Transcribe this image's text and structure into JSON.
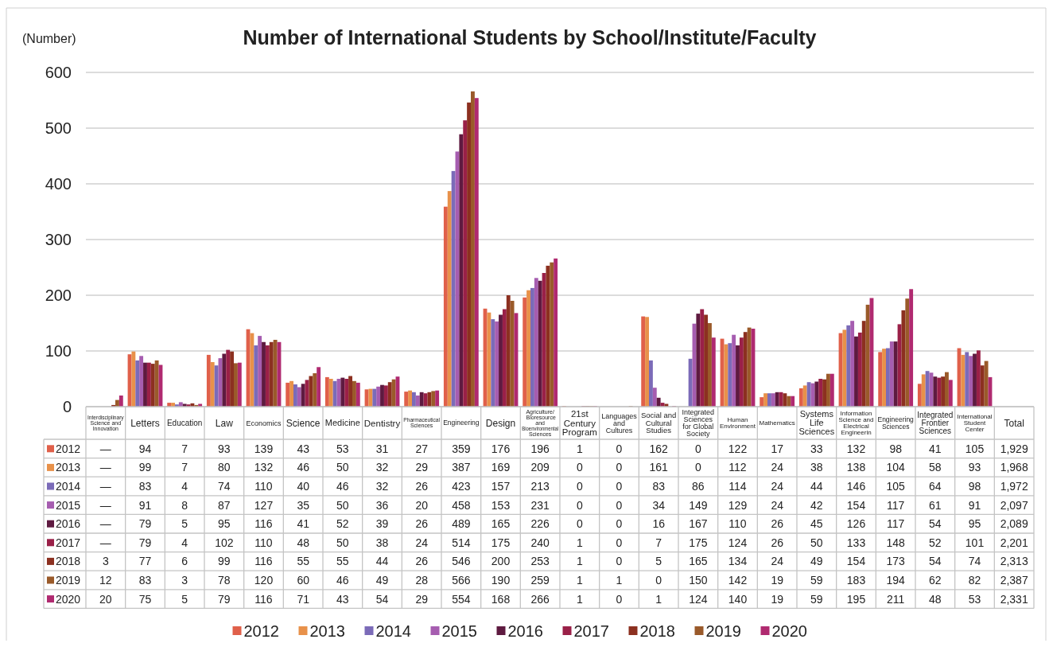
{
  "chart_data": {
    "type": "bar",
    "title": "Number of International Students by School/Institute/Faculty",
    "ylabel": "(Number)",
    "categories": [
      "Interdisciplinary Science and Innovation",
      "Letters",
      "Education",
      "Law",
      "Economics",
      "Science",
      "Medicine",
      "Dentistry",
      "Pharmaceutical Sciences",
      "Engineering",
      "Design",
      "Agriculture/ Bioresource and Bioenvironmental Sciences",
      "21st Century Program",
      "Languages and Cultures",
      "Social and Cultural Studies",
      "Integrated Sciences for Global Society",
      "Human Environment",
      "Mathematics",
      "Systems Life Sciences",
      "Information Science and Electrical Engineerin",
      "Engineering Sciences",
      "Integrated Frontier Sciences",
      "International Student Center",
      "Total"
    ],
    "ylim": [
      0,
      600
    ],
    "yticks": [
      0,
      100,
      200,
      300,
      400,
      500,
      600
    ],
    "grid": "y",
    "legend": "bottom",
    "series": [
      {
        "name": "2012",
        "color": "#e0604a",
        "values": [
          null,
          94,
          7,
          93,
          139,
          43,
          53,
          31,
          27,
          359,
          176,
          196,
          1,
          0,
          162,
          0,
          122,
          17,
          33,
          132,
          98,
          41,
          105,
          null
        ],
        "value_labels": [
          "—",
          "94",
          "7",
          "93",
          "139",
          "43",
          "53",
          "31",
          "27",
          "359",
          "176",
          "196",
          "1",
          "0",
          "162",
          "0",
          "122",
          "17",
          "33",
          "132",
          "98",
          "41",
          "105",
          "1,929"
        ]
      },
      {
        "name": "2013",
        "color": "#e8914a",
        "values": [
          null,
          99,
          7,
          80,
          132,
          46,
          50,
          32,
          29,
          387,
          169,
          209,
          0,
          0,
          161,
          0,
          112,
          24,
          38,
          138,
          104,
          58,
          93,
          null
        ],
        "value_labels": [
          "—",
          "99",
          "7",
          "80",
          "132",
          "46",
          "50",
          "32",
          "29",
          "387",
          "169",
          "209",
          "0",
          "0",
          "161",
          "0",
          "112",
          "24",
          "38",
          "138",
          "104",
          "58",
          "93",
          "1,968"
        ]
      },
      {
        "name": "2014",
        "color": "#7b6bb8",
        "values": [
          null,
          83,
          4,
          74,
          110,
          40,
          46,
          32,
          26,
          423,
          157,
          213,
          0,
          0,
          83,
          86,
          114,
          24,
          44,
          146,
          105,
          64,
          98,
          null
        ],
        "value_labels": [
          "—",
          "83",
          "4",
          "74",
          "110",
          "40",
          "46",
          "32",
          "26",
          "423",
          "157",
          "213",
          "0",
          "0",
          "83",
          "86",
          "114",
          "24",
          "44",
          "146",
          "105",
          "64",
          "98",
          "1,972"
        ]
      },
      {
        "name": "2015",
        "color": "#a65db0",
        "values": [
          null,
          91,
          8,
          87,
          127,
          35,
          50,
          36,
          20,
          458,
          153,
          231,
          0,
          0,
          34,
          149,
          129,
          24,
          42,
          154,
          117,
          61,
          91,
          null
        ],
        "value_labels": [
          "—",
          "91",
          "8",
          "87",
          "127",
          "35",
          "50",
          "36",
          "20",
          "458",
          "153",
          "231",
          "0",
          "0",
          "34",
          "149",
          "129",
          "24",
          "42",
          "154",
          "117",
          "61",
          "91",
          "2,097"
        ]
      },
      {
        "name": "2016",
        "color": "#5e1a40",
        "values": [
          null,
          79,
          5,
          95,
          116,
          41,
          52,
          39,
          26,
          489,
          165,
          226,
          0,
          0,
          16,
          167,
          110,
          26,
          45,
          126,
          117,
          54,
          95,
          null
        ],
        "value_labels": [
          "—",
          "79",
          "5",
          "95",
          "116",
          "41",
          "52",
          "39",
          "26",
          "489",
          "165",
          "226",
          "0",
          "0",
          "16",
          "167",
          "110",
          "26",
          "45",
          "126",
          "117",
          "54",
          "95",
          "2,089"
        ]
      },
      {
        "name": "2017",
        "color": "#9a2048",
        "values": [
          null,
          79,
          4,
          102,
          110,
          48,
          50,
          38,
          24,
          514,
          175,
          240,
          1,
          0,
          7,
          175,
          124,
          26,
          50,
          133,
          148,
          52,
          101,
          null
        ],
        "value_labels": [
          "—",
          "79",
          "4",
          "102",
          "110",
          "48",
          "50",
          "38",
          "24",
          "514",
          "175",
          "240",
          "1",
          "0",
          "7",
          "175",
          "124",
          "26",
          "50",
          "133",
          "148",
          "52",
          "101",
          "2,201"
        ]
      },
      {
        "name": "2018",
        "color": "#8c3020",
        "values": [
          3,
          77,
          6,
          99,
          116,
          55,
          55,
          44,
          26,
          546,
          200,
          253,
          1,
          0,
          5,
          165,
          134,
          24,
          49,
          154,
          173,
          54,
          74,
          null
        ],
        "value_labels": [
          "3",
          "77",
          "6",
          "99",
          "116",
          "55",
          "55",
          "44",
          "26",
          "546",
          "200",
          "253",
          "1",
          "0",
          "5",
          "165",
          "134",
          "24",
          "49",
          "154",
          "173",
          "54",
          "74",
          "2,313"
        ]
      },
      {
        "name": "2019",
        "color": "#9a5a2a",
        "values": [
          12,
          83,
          3,
          78,
          120,
          60,
          46,
          49,
          28,
          566,
          190,
          259,
          1,
          1,
          0,
          150,
          142,
          19,
          59,
          183,
          194,
          62,
          82,
          null
        ],
        "value_labels": [
          "12",
          "83",
          "3",
          "78",
          "120",
          "60",
          "46",
          "49",
          "28",
          "566",
          "190",
          "259",
          "1",
          "1",
          "0",
          "150",
          "142",
          "19",
          "59",
          "183",
          "194",
          "62",
          "82",
          "2,387"
        ]
      },
      {
        "name": "2020",
        "color": "#b02a70",
        "values": [
          20,
          75,
          5,
          79,
          116,
          71,
          43,
          54,
          29,
          554,
          168,
          266,
          1,
          0,
          1,
          124,
          140,
          19,
          59,
          195,
          211,
          48,
          53,
          null
        ],
        "value_labels": [
          "20",
          "75",
          "5",
          "79",
          "116",
          "71",
          "43",
          "54",
          "29",
          "554",
          "168",
          "266",
          "1",
          "0",
          "1",
          "124",
          "140",
          "19",
          "59",
          "195",
          "211",
          "48",
          "53",
          "2,331"
        ]
      }
    ]
  }
}
